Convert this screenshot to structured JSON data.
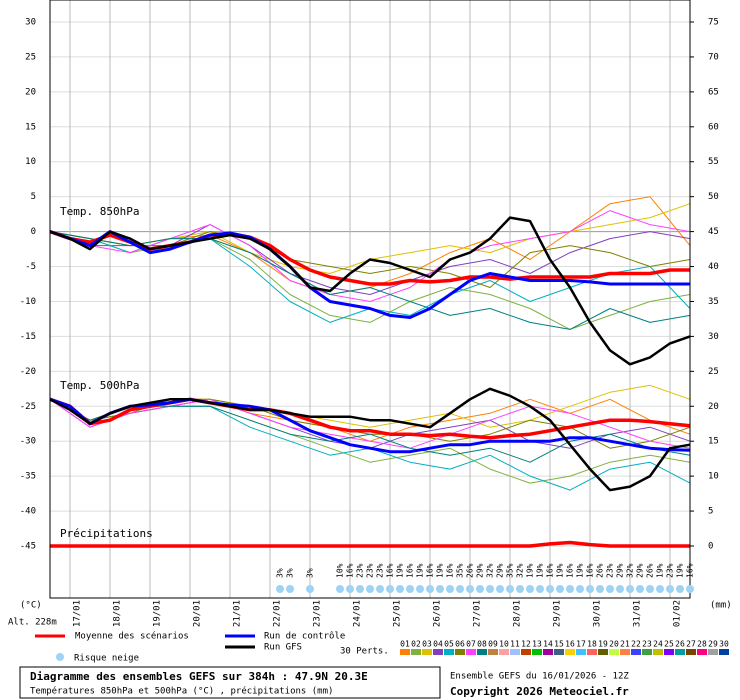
{
  "chart_data": {
    "type": "line",
    "y_label": "(°C)",
    "y2_label": "(mm)",
    "altitude": "Alt. 228m",
    "ylim": [
      -45,
      30
    ],
    "yticks": [
      -45,
      -40,
      -35,
      -30,
      -25,
      -20,
      -15,
      -10,
      -5,
      0,
      5,
      10,
      15,
      20,
      25,
      30
    ],
    "y2lim": [
      0,
      75
    ],
    "y2ticks": [
      0,
      5,
      10,
      15,
      20,
      25,
      30,
      35,
      40,
      45,
      50,
      55,
      60,
      65,
      70,
      75
    ],
    "xlim": [
      0,
      384
    ],
    "xticks": [
      {
        "value": 12,
        "label": "17/01"
      },
      {
        "value": 36,
        "label": "18/01"
      },
      {
        "value": 60,
        "label": "19/01"
      },
      {
        "value": 84,
        "label": "20/01"
      },
      {
        "value": 108,
        "label": "21/01"
      },
      {
        "value": 132,
        "label": "22/01"
      },
      {
        "value": 156,
        "label": "23/01"
      },
      {
        "value": 180,
        "label": "24/01"
      },
      {
        "value": 204,
        "label": "25/01"
      },
      {
        "value": 228,
        "label": "26/01"
      },
      {
        "value": 252,
        "label": "27/01"
      },
      {
        "value": 276,
        "label": "28/01"
      },
      {
        "value": 300,
        "label": "29/01"
      },
      {
        "value": 324,
        "label": "30/01"
      },
      {
        "value": 348,
        "label": "31/01"
      },
      {
        "value": 372,
        "label": "01/02"
      }
    ],
    "grid": true,
    "levels": {
      "t850": "Temp. 850hPa",
      "t500": "Temp. 500hPa",
      "precip": "Précipitations"
    },
    "x": [
      0,
      12,
      24,
      36,
      48,
      60,
      72,
      84,
      96,
      108,
      120,
      132,
      144,
      156,
      168,
      180,
      192,
      204,
      216,
      228,
      240,
      252,
      264,
      276,
      288,
      300,
      312,
      324,
      336,
      348,
      360,
      372,
      384
    ],
    "series": [
      {
        "name": "Moyenne des scénarios",
        "color": "#ff0000",
        "t850": [
          0,
          -1,
          -1.5,
          -0.5,
          -1.5,
          -2.5,
          -2,
          -1.5,
          -0.5,
          -0.3,
          -0.8,
          -2,
          -4,
          -5.5,
          -6.5,
          -7,
          -7.5,
          -7.5,
          -7,
          -7.2,
          -7,
          -6.5,
          -6.5,
          -6.8,
          -6.5,
          -6.5,
          -6.5,
          -6.5,
          -6,
          -6,
          -6,
          -5.5,
          -5.5
        ],
        "t500": [
          -24,
          -25,
          -27.5,
          -27,
          -25.5,
          -25,
          -24.5,
          -24,
          -24.5,
          -25,
          -25.5,
          -25.5,
          -26,
          -27,
          -28,
          -28.5,
          -28.5,
          -29,
          -29,
          -29.2,
          -29,
          -29.3,
          -29.5,
          -29.2,
          -29,
          -28.5,
          -28,
          -27.5,
          -27,
          -27,
          -27.2,
          -27.5,
          -27.8
        ],
        "precip": [
          0,
          0,
          0,
          0,
          0,
          0,
          0,
          0,
          0,
          0,
          0,
          0,
          0,
          0,
          0,
          0,
          0,
          0,
          0,
          0,
          0,
          0,
          0,
          0,
          0,
          0.3,
          0.5,
          0.2,
          0,
          0,
          0,
          0,
          0
        ]
      },
      {
        "name": "Run de contrôle",
        "color": "#0000ff",
        "t850": [
          0,
          -1,
          -2,
          0,
          -1.5,
          -3,
          -2.5,
          -1.5,
          -0.5,
          -0.2,
          -0.8,
          -2.5,
          -5,
          -8,
          -10,
          -10.5,
          -11,
          -12,
          -12.3,
          -11,
          -9,
          -7,
          -6,
          -6.5,
          -7,
          -7,
          -7,
          -7.2,
          -7.5,
          -7.5,
          -7.5,
          -7.5,
          -7.5
        ],
        "t500": [
          -24,
          -25,
          -27.5,
          -26,
          -25,
          -24.8,
          -24.5,
          -24,
          -24.5,
          -24.8,
          -25,
          -25.5,
          -27,
          -28.5,
          -29.5,
          -30.5,
          -31,
          -31.5,
          -31.5,
          -31,
          -30.5,
          -30.5,
          -30,
          -30,
          -30,
          -30,
          -29.5,
          -29.5,
          -30,
          -30.5,
          -31,
          -31.2,
          -31.3
        ]
      },
      {
        "name": "Run GFS",
        "color": "#000000",
        "t850": [
          0,
          -1,
          -2.5,
          0,
          -1,
          -2.5,
          -2,
          -1.5,
          -1,
          -0.5,
          -1,
          -2.5,
          -5,
          -8,
          -8.5,
          -6,
          -4,
          -4.5,
          -5.5,
          -6.5,
          -4,
          -3,
          -1,
          2,
          1.5,
          -4,
          -8,
          -13,
          -17,
          -19,
          -18,
          -16,
          -15
        ],
        "t500": [
          -24,
          -25.5,
          -27.5,
          -26,
          -25,
          -24.5,
          -24,
          -24,
          -24.5,
          -25,
          -25.5,
          -25.5,
          -26,
          -26.5,
          -26.5,
          -26.5,
          -27,
          -27,
          -27.5,
          -28,
          -26,
          -24,
          -22.5,
          -23.5,
          -25,
          -27,
          -30.5,
          -34,
          -37,
          -36.5,
          -35,
          -31,
          -30.5
        ]
      }
    ],
    "x_perts": [
      0,
      24,
      48,
      72,
      96,
      120,
      144,
      168,
      192,
      216,
      240,
      264,
      288,
      312,
      336,
      360,
      384
    ],
    "perturbations": {
      "label": "30 Perts.",
      "members": [
        {
          "name": "01",
          "color": "#ff8000",
          "t850": [
            0,
            -1,
            -2,
            -1,
            -0.5,
            -3,
            -7,
            -9,
            -8,
            -6,
            -3,
            -1,
            -4,
            0,
            4,
            5,
            -2
          ],
          "t500": [
            -24,
            -27,
            -26,
            -25,
            -24,
            -26,
            -27,
            -28,
            -30,
            -28,
            -27,
            -26,
            -24,
            -26,
            -24,
            -27,
            -29
          ]
        },
        {
          "name": "02",
          "color": "#80b040",
          "t850": [
            0,
            -1,
            -3,
            -2,
            -1,
            -4,
            -9,
            -12,
            -13,
            -10,
            -8,
            -9,
            -11,
            -14,
            -12,
            -10,
            -9
          ],
          "t500": [
            -24,
            -27,
            -26,
            -25,
            -25,
            -27,
            -29,
            -31,
            -33,
            -32,
            -31,
            -34,
            -36,
            -35,
            -33,
            -32,
            -33
          ]
        },
        {
          "name": "03",
          "color": "#e0c000",
          "t850": [
            0,
            -1,
            -2,
            -1,
            0,
            -3,
            -5,
            -6,
            -4,
            -3,
            -2,
            -3,
            -1,
            0,
            1,
            2,
            4
          ],
          "t500": [
            -24,
            -27,
            -25,
            -24,
            -24,
            -25,
            -26,
            -27,
            -28,
            -27,
            -26,
            -28,
            -27,
            -25,
            -23,
            -22,
            -24
          ]
        },
        {
          "name": "04",
          "color": "#8040c0",
          "t850": [
            0,
            -2,
            -2,
            -2,
            1,
            -2,
            -6,
            -8,
            -9,
            -7,
            -5,
            -4,
            -6,
            -3,
            -1,
            0,
            -1
          ],
          "t500": [
            -24,
            -28,
            -26,
            -25,
            -24,
            -26,
            -28,
            -30,
            -31,
            -29,
            -28,
            -27,
            -30,
            -31,
            -29,
            -28,
            -30
          ]
        },
        {
          "name": "05",
          "color": "#00b0c0",
          "t850": [
            0,
            -1,
            -3,
            -1,
            -1,
            -5,
            -10,
            -13,
            -11,
            -12,
            -9,
            -7,
            -10,
            -8,
            -6,
            -5,
            -11
          ],
          "t500": [
            -24,
            -27,
            -26,
            -25,
            -25,
            -28,
            -30,
            -32,
            -31,
            -33,
            -34,
            -32,
            -35,
            -37,
            -34,
            -33,
            -36
          ]
        },
        {
          "name": "06",
          "color": "#808000",
          "t850": [
            0,
            -1,
            -2,
            -2,
            0,
            -1,
            -4,
            -5,
            -6,
            -5,
            -6,
            -8,
            -3,
            -2,
            -3,
            -5,
            -4
          ],
          "t500": [
            -24,
            -27,
            -26,
            -24,
            -24,
            -25,
            -27,
            -28,
            -29,
            -29,
            -30,
            -29,
            -27,
            -28,
            -31,
            -30,
            -28
          ]
        },
        {
          "name": "07",
          "color": "#ff40ff",
          "t850": [
            0,
            -2,
            -3,
            -1,
            1,
            -2,
            -7,
            -9,
            -10,
            -8,
            -4,
            -2,
            -1,
            0,
            3,
            1,
            0
          ],
          "t500": [
            -24,
            -28,
            -26,
            -25,
            -24,
            -26,
            -28,
            -29,
            -30,
            -31,
            -29,
            -27,
            -25,
            -26,
            -28,
            -30,
            -31
          ]
        },
        {
          "name": "08",
          "color": "#008080",
          "t850": [
            0,
            -1,
            -2,
            -1,
            -1,
            -3,
            -6,
            -9,
            -8,
            -10,
            -12,
            -11,
            -13,
            -14,
            -11,
            -13,
            -12
          ],
          "t500": [
            -24,
            -27,
            -25,
            -25,
            -25,
            -27,
            -29,
            -30,
            -29,
            -31,
            -32,
            -31,
            -33,
            -30,
            -29,
            -31,
            -32
          ]
        },
        {
          "name": "09",
          "color": "#c08040"
        },
        {
          "name": "10",
          "color": "#ffa0a0"
        },
        {
          "name": "11",
          "color": "#a0c0ff"
        },
        {
          "name": "12",
          "color": "#c04000"
        },
        {
          "name": "13",
          "color": "#00c000"
        },
        {
          "name": "14",
          "color": "#a000a0"
        },
        {
          "name": "15",
          "color": "#406080"
        },
        {
          "name": "16",
          "color": "#ffd000"
        },
        {
          "name": "17",
          "color": "#40c0ff"
        },
        {
          "name": "18",
          "color": "#ff6060"
        },
        {
          "name": "19",
          "color": "#606000"
        },
        {
          "name": "20",
          "color": "#c0ff40"
        },
        {
          "name": "21",
          "color": "#ff8040"
        },
        {
          "name": "22",
          "color": "#4040ff"
        },
        {
          "name": "23",
          "color": "#40a040"
        },
        {
          "name": "24",
          "color": "#c0c000"
        },
        {
          "name": "25",
          "color": "#8000ff"
        },
        {
          "name": "26",
          "color": "#00a0a0"
        },
        {
          "name": "27",
          "color": "#804000"
        },
        {
          "name": "28",
          "color": "#ff0080"
        },
        {
          "name": "29",
          "color": "#a0a0a0"
        },
        {
          "name": "30",
          "color": "#0040a0"
        }
      ]
    },
    "snow_risk": {
      "label": "Risque neige",
      "color": "#9fd3f5",
      "x": [
        138,
        144,
        156,
        174,
        180,
        186,
        192,
        198,
        204,
        210,
        216,
        222,
        228,
        234,
        240,
        246,
        252,
        258,
        264,
        270,
        276,
        282,
        288,
        294,
        300,
        306,
        312,
        318,
        324,
        330,
        336,
        342,
        348,
        354,
        360,
        366,
        372,
        378,
        384
      ],
      "values": [
        3,
        3,
        3,
        10,
        16,
        23,
        23,
        23,
        16,
        19,
        16,
        19,
        16,
        19,
        16,
        35,
        26,
        29,
        32,
        29,
        35,
        32,
        19,
        19,
        16,
        19,
        16,
        19,
        16,
        26,
        23,
        29,
        32,
        29,
        26,
        19,
        23,
        19,
        16
      ],
      "value_labels": [
        "3%",
        "3%",
        "3%",
        "10%",
        "16%",
        "23%",
        "23%",
        "23%",
        "16%",
        "19%",
        "16%",
        "19%",
        "16%",
        "19%",
        "16%",
        "35%",
        "26%",
        "29%",
        "32%",
        "29%",
        "35%",
        "32%",
        "19%",
        "19%",
        "16%",
        "19%",
        "16%",
        "19%",
        "16%",
        "26%",
        "23%",
        "29%",
        "32%",
        "29%",
        "26%",
        "19%",
        "23%",
        "19%",
        "16%"
      ]
    },
    "footer": {
      "title": "Diagramme des ensembles GEFS sur 384h : 47.9N 20.3E",
      "subtitle": "Températures 850hPa et 500hPa (°C) , précipitations (mm)",
      "run": "Ensemble GEFS du 16/01/2026 - 12Z",
      "copyright": "Copyright 2026 Meteociel.fr"
    }
  }
}
